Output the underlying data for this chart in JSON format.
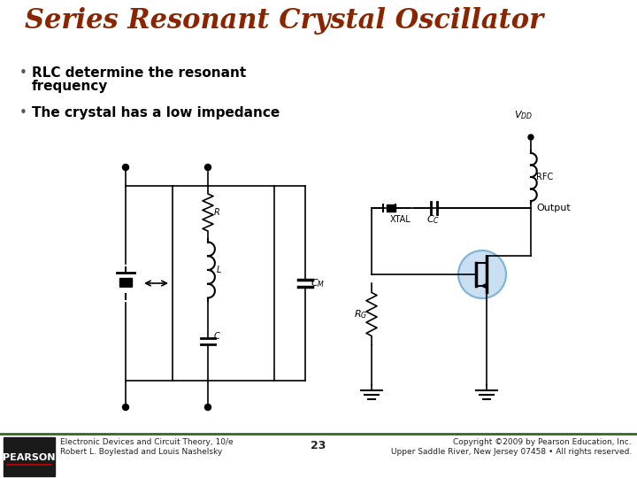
{
  "title": "Series Resonant Crystal Oscillator",
  "title_color": "#8B2500",
  "title_fontsize": 22,
  "bullet1_line1": "RLC determine the resonant",
  "bullet1_line2": "frequency",
  "bullet2": "The crystal has a low impedance",
  "bullet_fontsize": 11,
  "bg_color": "#FFFFFF",
  "footer_left1": "Electronic Devices and Circuit Theory, 10/e",
  "footer_left2": "Robert L. Boylestad and Louis Nashelsky",
  "footer_center": "23",
  "footer_right1": "Copyright ©2009 by Pearson Education, Inc.",
  "footer_right2": "Upper Saddle River, New Jersey 07458 • All rights reserved.",
  "footer_color": "#222222",
  "footer_fontsize": 6.5,
  "footer_bar_color": "#2E6B1E",
  "pearson_bg": "#1a1a1a",
  "pearson_text": "PEARSON",
  "pearson_fontsize": 8
}
